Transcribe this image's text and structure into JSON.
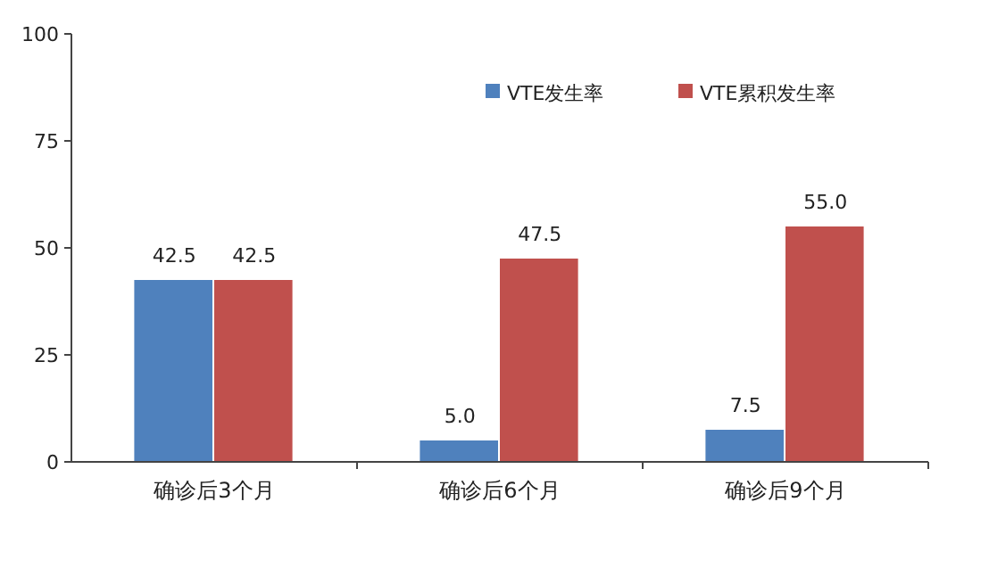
{
  "chart_data": {
    "type": "bar",
    "categories": [
      "确诊后3个月",
      "确诊后6个月",
      "确诊后9个月"
    ],
    "series": [
      {
        "name": "VTE发生率",
        "color": "#4f81bd",
        "values": [
          42.5,
          5.0,
          7.5
        ],
        "value_labels": [
          "42.5",
          "5.0",
          "7.5"
        ]
      },
      {
        "name": "VTE累积发生率",
        "color": "#c0504d",
        "values": [
          42.5,
          47.5,
          55.0
        ],
        "value_labels": [
          "42.5",
          "47.5",
          "55.0"
        ]
      }
    ],
    "ylim": [
      0,
      100
    ],
    "yticks": [
      0,
      25,
      50,
      75,
      100
    ],
    "grid": false,
    "legend": "top right"
  }
}
